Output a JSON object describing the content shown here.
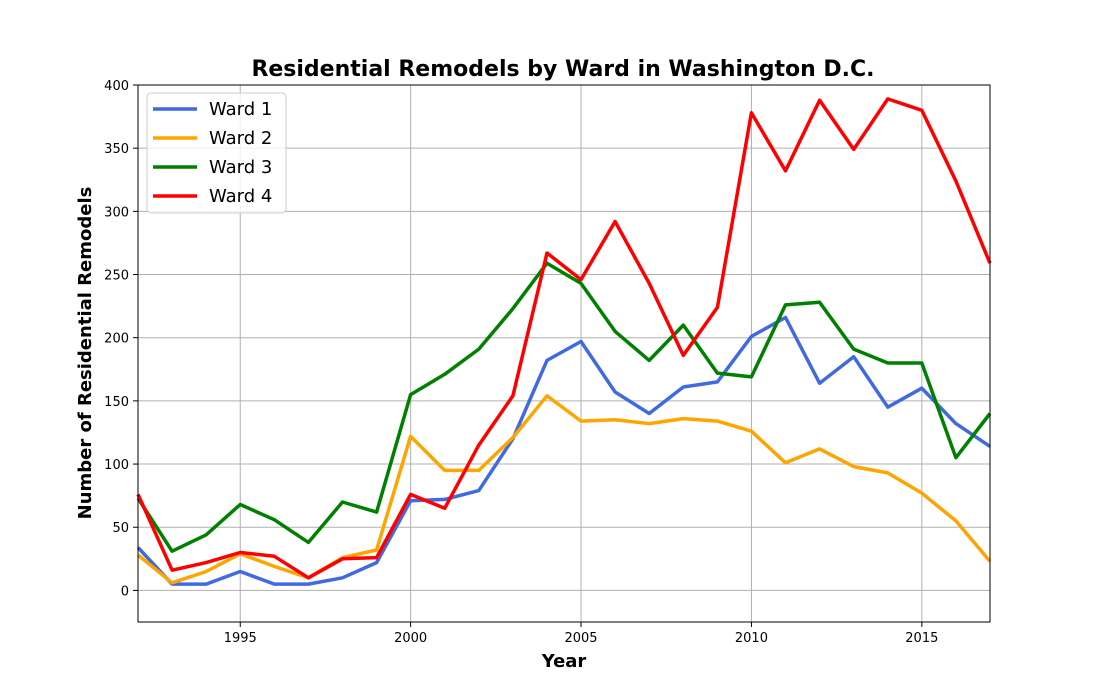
{
  "chart_data": {
    "type": "line",
    "title": "Residential Remodels by Ward in Washington D.C.",
    "xlabel": "Year",
    "ylabel": "Number of Residential Remodels",
    "xlim": [
      1992,
      2017
    ],
    "ylim": [
      -25,
      400
    ],
    "xticks": [
      1995,
      2000,
      2005,
      2010,
      2015
    ],
    "yticks": [
      0,
      50,
      100,
      150,
      200,
      250,
      300,
      350,
      400
    ],
    "grid": true,
    "legend_position": "top-left",
    "x": [
      1992,
      1993,
      1994,
      1995,
      1996,
      1997,
      1998,
      1999,
      2000,
      2001,
      2002,
      2003,
      2004,
      2005,
      2006,
      2007,
      2008,
      2009,
      2010,
      2011,
      2012,
      2013,
      2014,
      2015,
      2016,
      2017
    ],
    "series": [
      {
        "name": "Ward 1",
        "color": "#4169e1",
        "values": [
          34,
          5,
          5,
          15,
          5,
          5,
          10,
          22,
          71,
          72,
          79,
          120,
          182,
          197,
          157,
          140,
          161,
          165,
          201,
          216,
          164,
          185,
          145,
          160,
          132,
          114
        ]
      },
      {
        "name": "Ward 2",
        "color": "#ffa500",
        "values": [
          28,
          6,
          15,
          29,
          19,
          10,
          26,
          32,
          122,
          95,
          95,
          121,
          154,
          134,
          135,
          132,
          136,
          134,
          126,
          101,
          112,
          98,
          93,
          77,
          55,
          23
        ]
      },
      {
        "name": "Ward 3",
        "color": "#008000",
        "values": [
          73,
          31,
          44,
          68,
          56,
          38,
          70,
          62,
          155,
          171,
          191,
          223,
          259,
          243,
          205,
          182,
          210,
          172,
          169,
          226,
          228,
          191,
          180,
          180,
          105,
          140
        ]
      },
      {
        "name": "Ward 4",
        "color": "#ff0000",
        "values": [
          76,
          16,
          22,
          30,
          27,
          10,
          25,
          26,
          76,
          65,
          115,
          154,
          267,
          246,
          292,
          243,
          186,
          224,
          378,
          332,
          388,
          349,
          389,
          380,
          324,
          259
        ]
      }
    ]
  }
}
